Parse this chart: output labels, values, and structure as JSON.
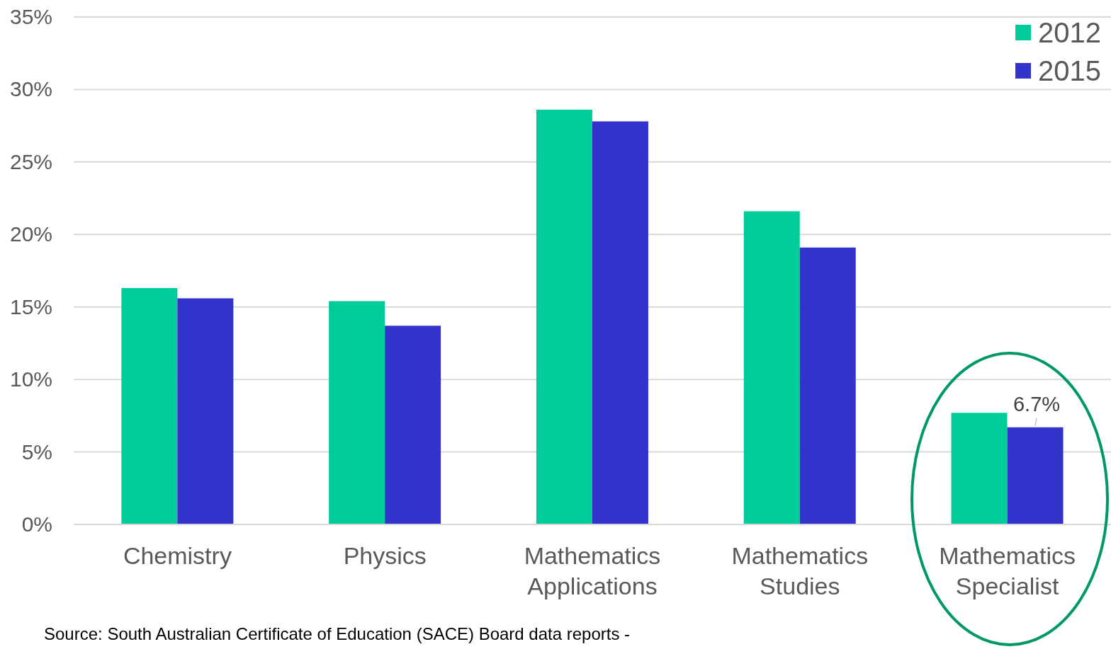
{
  "chart_data": {
    "type": "bar",
    "categories": [
      "Chemistry",
      "Physics",
      "Mathematics Applications",
      "Mathematics Studies",
      "Mathematics Specialist"
    ],
    "series": [
      {
        "name": "2012",
        "color": "#00cc99",
        "values": [
          16.3,
          15.4,
          28.6,
          21.6,
          7.7
        ]
      },
      {
        "name": "2015",
        "color": "#3333cc",
        "values": [
          15.6,
          13.7,
          27.8,
          19.1,
          6.7
        ],
        "value_labels": [
          null,
          null,
          null,
          null,
          "6.7%"
        ]
      }
    ],
    "ylim": [
      0,
      35
    ],
    "yticks": [
      {
        "value": 0,
        "label": "0%"
      },
      {
        "value": 5,
        "label": "5%"
      },
      {
        "value": 10,
        "label": "10%"
      },
      {
        "value": 15,
        "label": "15%"
      },
      {
        "value": 20,
        "label": "20%"
      },
      {
        "value": 25,
        "label": "25%"
      },
      {
        "value": 30,
        "label": "30%"
      },
      {
        "value": 35,
        "label": "35%"
      }
    ],
    "grid": "y",
    "legend": "top right",
    "annotations": [
      "Source: South Australian Certificate of Education (SACE) Board data reports -"
    ]
  }
}
